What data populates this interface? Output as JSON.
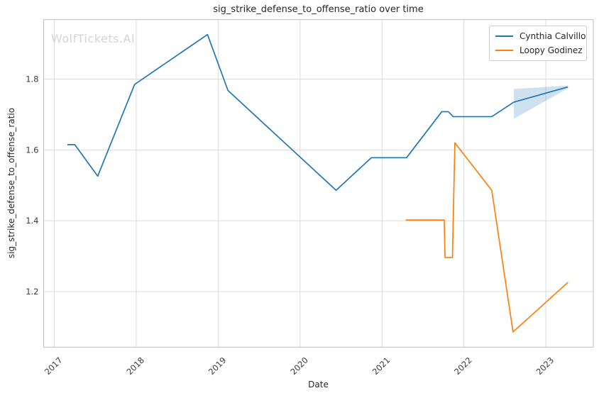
{
  "watermark": {
    "text": "WolfTickets.AI"
  },
  "chart_data": {
    "type": "line",
    "title": "sig_strike_defense_to_offense_ratio over time",
    "xlabel": "Date",
    "ylabel": "sig_strike_defense_to_offense_ratio",
    "legend_position": "upper right",
    "grid": true,
    "x_unit": "decimal_year",
    "xlim": [
      2016.87,
      2023.58
    ],
    "ylim": [
      1.043,
      1.968
    ],
    "x_ticks": [
      2017,
      2018,
      2019,
      2020,
      2021,
      2022,
      2023
    ],
    "y_ticks": [
      1.2,
      1.4,
      1.6,
      1.8
    ],
    "series": [
      {
        "name": "Cynthia Calvillo",
        "color": "#1f77b4",
        "points": [
          [
            2017.16,
            1.615
          ],
          [
            2017.25,
            1.615
          ],
          [
            2017.53,
            1.526
          ],
          [
            2017.98,
            1.785
          ],
          [
            2018.87,
            1.926
          ],
          [
            2019.12,
            1.768
          ],
          [
            2020.44,
            1.486
          ],
          [
            2020.87,
            1.578
          ],
          [
            2021.3,
            1.578
          ],
          [
            2021.73,
            1.708
          ],
          [
            2021.81,
            1.708
          ],
          [
            2021.87,
            1.694
          ],
          [
            2022.34,
            1.694
          ],
          [
            2022.61,
            1.735
          ],
          [
            2023.27,
            1.778
          ]
        ]
      },
      {
        "name": "Loopy Godinez",
        "color": "#ff7f0e",
        "points": [
          [
            2021.29,
            1.402
          ],
          [
            2021.76,
            1.402
          ],
          [
            2021.77,
            1.296
          ],
          [
            2021.86,
            1.296
          ],
          [
            2021.89,
            1.62
          ],
          [
            2022.34,
            1.486
          ],
          [
            2022.6,
            1.086
          ],
          [
            2023.27,
            1.226
          ]
        ]
      }
    ],
    "confidence_band": {
      "series": "Cynthia Calvillo",
      "color": "#1f77b4",
      "opacity": 0.22,
      "x": [
        2022.61,
        2023.27
      ],
      "upper": [
        1.772,
        1.782
      ],
      "lower": [
        1.688,
        1.774
      ]
    }
  }
}
